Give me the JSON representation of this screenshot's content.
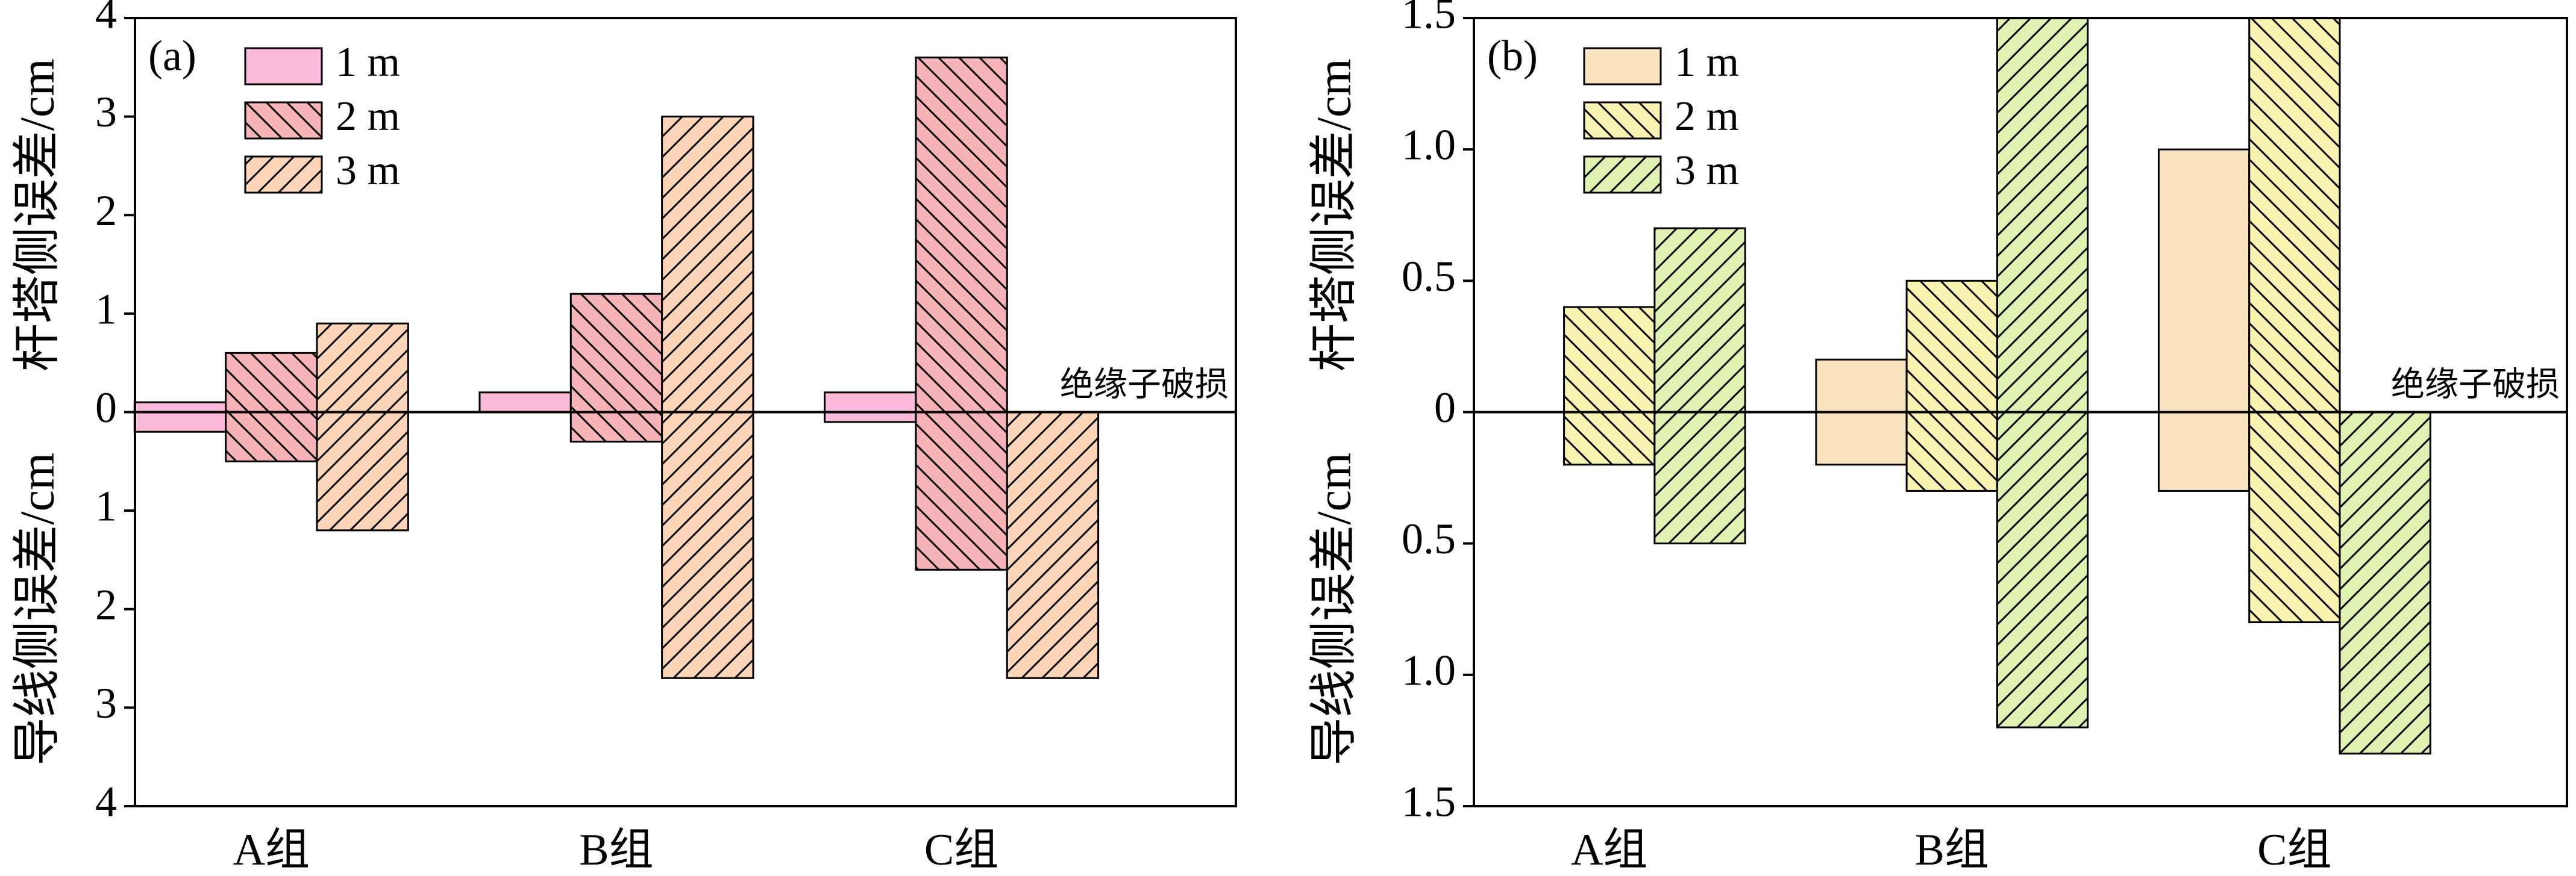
{
  "chart_data": [
    {
      "type": "bar",
      "panel_label": "(a)",
      "categories": [
        "A组",
        "B组",
        "C组"
      ],
      "y_label_upper": "杆塔侧误差/cm",
      "y_label_lower": "导线侧误差/cm",
      "annotation": "绝缘子破损",
      "ylim": [
        -4,
        4
      ],
      "yticks": [
        {
          "value": -4,
          "label": "4"
        },
        {
          "value": -3,
          "label": "3"
        },
        {
          "value": -2,
          "label": "2"
        },
        {
          "value": -1,
          "label": "1"
        },
        0,
        1,
        2,
        3,
        4
      ],
      "series": [
        {
          "name": "1 m",
          "color": "#f9b9d9",
          "hatch": "none",
          "values": [
            0.1,
            0.2,
            0.2
          ],
          "lower_values": [
            -0.2,
            0,
            -0.1
          ]
        },
        {
          "name": "2 m",
          "color": "#f7b4b8",
          "hatch": "back",
          "values": [
            0.6,
            1.2,
            3.6
          ],
          "lower_values": [
            -0.5,
            -0.3,
            -1.6
          ]
        },
        {
          "name": "3 m",
          "color": "#fcd4b7",
          "hatch": "forward",
          "values": [
            0.9,
            3.0,
            0
          ],
          "lower_values": [
            -1.2,
            -2.7,
            -2.7
          ]
        }
      ]
    },
    {
      "type": "bar",
      "panel_label": "(b)",
      "categories": [
        "A组",
        "B组",
        "C组"
      ],
      "y_label_upper": "杆塔侧误差/cm",
      "y_label_lower": "导线侧误差/cm",
      "annotation": "绝缘子破损",
      "ylim": [
        -1.5,
        1.5
      ],
      "yticks": [
        {
          "value": -1.5,
          "label": "1.5"
        },
        {
          "value": -1.0,
          "label": "1.0"
        },
        {
          "value": -0.5,
          "label": "0.5"
        },
        0,
        0.5,
        {
          "value": 1.0,
          "label": "1.0"
        },
        1.5
      ],
      "series": [
        {
          "name": "1 m",
          "color": "#fbe4c0",
          "hatch": "none",
          "values": [
            0,
            0.2,
            1.0
          ],
          "lower_values": [
            0,
            -0.2,
            -0.3
          ]
        },
        {
          "name": "2 m",
          "color": "#f9f3b2",
          "hatch": "back",
          "values": [
            0.4,
            0.5,
            1.5
          ],
          "lower_values": [
            -0.2,
            -0.3,
            -0.8
          ]
        },
        {
          "name": "3 m",
          "color": "#dff2b2",
          "hatch": "forward",
          "values": [
            0.7,
            1.5,
            0
          ],
          "lower_values": [
            -0.5,
            -1.2,
            -1.3
          ]
        }
      ]
    }
  ]
}
